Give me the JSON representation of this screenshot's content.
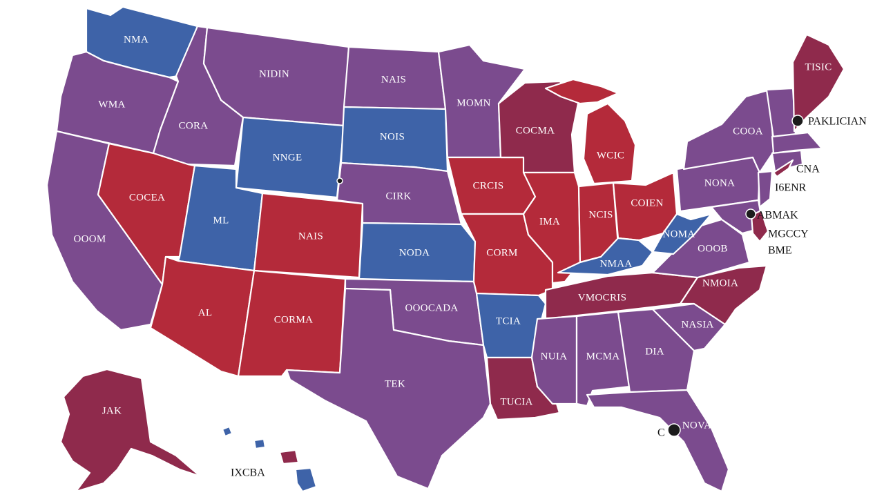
{
  "map": {
    "colors": {
      "red": "#b42a3a",
      "blue": "#3e63a8",
      "purple": "#7b4b8e",
      "maroon": "#8f2a4c",
      "label": "#ffffff",
      "external_label": "#111111"
    },
    "state_labels": {
      "wa": "NMA",
      "or": "WMA",
      "ca": "OOOM",
      "id": "CORA",
      "nv": "COCEA",
      "mt": "NIDIN",
      "wy": "NNGE",
      "ut": "ML",
      "az": "AL",
      "co": "NAIS",
      "nm": "CORMA",
      "nd": "NAIS",
      "sd": "NOIS",
      "ne": "CIRK",
      "ks": "NODA",
      "ok": "OOOCADA",
      "tx": "TEK",
      "mn": "MOMN",
      "ia": "CRCIS",
      "mo": "CORM",
      "ar": "TCIA",
      "la": "TUCIA",
      "wi": "COCMA",
      "mi": "WCIC",
      "il": "IMA",
      "in": "NCIS",
      "oh": "COIEN",
      "ky": "NMAA",
      "tn": "VMOCRIS",
      "ms": "NUIA",
      "al": "MCMA",
      "ga": "DIA",
      "fl": "NOVA",
      "sc": "NASIA",
      "nc": "NMOIA",
      "va": "OOOB",
      "wv": "NOMA",
      "pa": "NONA",
      "ny": "COOA",
      "me": "TISIC",
      "ak": "JAK"
    },
    "external_labels": {
      "ne_states": "PAKLICIAN",
      "ct": "CNA",
      "ri": "I6ENR",
      "md": "ABMAK",
      "de": "MGCCY",
      "dc": "BME",
      "hi": "IXCBA",
      "fl_pin": "C"
    }
  }
}
